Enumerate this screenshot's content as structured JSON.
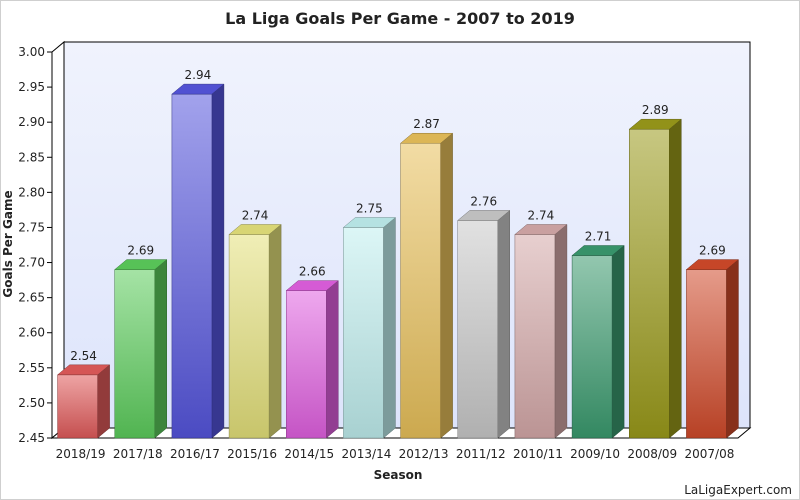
{
  "chart_data": {
    "type": "bar",
    "title": "La Liga Goals Per Game - 2007 to 2019",
    "xlabel": "Season",
    "ylabel": "Goals Per Game",
    "categories": [
      "2018/19",
      "2017/18",
      "2016/17",
      "2015/16",
      "2014/15",
      "2013/14",
      "2012/13",
      "2011/12",
      "2010/11",
      "2009/10",
      "2008/09",
      "2007/08"
    ],
    "values": [
      2.54,
      2.69,
      2.94,
      2.74,
      2.66,
      2.75,
      2.87,
      2.76,
      2.74,
      2.71,
      2.89,
      2.69
    ],
    "data_labels": [
      "2.54",
      "2.69",
      "2.94",
      "2.74",
      "2.66",
      "2.75",
      "2.87",
      "2.76",
      "2.74",
      "2.71",
      "2.89",
      "2.69"
    ],
    "ylim": [
      2.45,
      3.0
    ],
    "yticks": [
      "2.45",
      "2.50",
      "2.55",
      "2.60",
      "2.65",
      "2.70",
      "2.75",
      "2.80",
      "2.85",
      "2.90",
      "2.95",
      "3.00"
    ],
    "grid": false,
    "legend": "none",
    "bar_colors": [
      "#e05a5a",
      "#5ccc5c",
      "#5555dd",
      "#e3e07a",
      "#e060e0",
      "#bfeeee",
      "#e8c05a",
      "#c8c8c8",
      "#d4a8a8",
      "#3a9a6e",
      "#9a9a1a",
      "#d04a2a"
    ],
    "background_color": "#dde4fb",
    "credit": "LaLigaExpert.com"
  }
}
